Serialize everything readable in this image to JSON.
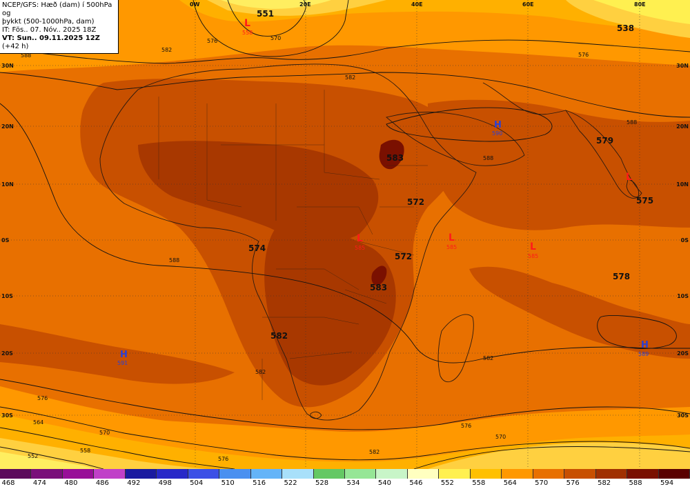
{
  "header": {
    "line1": "NCEP/GFS: Hæð (dam) í 500hPa og",
    "line2": "þykkt (500-1000hPa, dam)",
    "line3": "IT: Fös.. 07. Nóv.. 2025 18Z",
    "line4": "VT: Sun.. 09.11.2025 12Z",
    "line4_suffix": "(+42 h)"
  },
  "map": {
    "lon_labels": [
      "0W",
      "20E",
      "40E",
      "60E",
      "80E"
    ],
    "lat_labels": [
      "30N",
      "20N",
      "10N",
      "0S",
      "10S",
      "20S",
      "30S"
    ],
    "lows": [
      {
        "letter": "L",
        "value": "558"
      },
      {
        "letter": "L",
        "value": "585"
      },
      {
        "letter": "L",
        "value": "585"
      },
      {
        "letter": "L",
        "value": "585"
      },
      {
        "letter": "L",
        "value": ""
      }
    ],
    "highs": [
      {
        "letter": "H",
        "value": "590"
      },
      {
        "letter": "H",
        "value": "591"
      },
      {
        "letter": "H",
        "value": "589"
      }
    ],
    "thickness_labels": [
      "551",
      "538",
      "583",
      "579",
      "572",
      "575",
      "574",
      "572",
      "583",
      "578",
      "582"
    ],
    "contour_labels": [
      "570",
      "576",
      "582",
      "588",
      "576",
      "588",
      "582",
      "588",
      "576",
      "582",
      "582",
      "564",
      "570",
      "558",
      "552",
      "576",
      "582",
      "570",
      "576",
      "588"
    ]
  },
  "colorbar": {
    "levels": [
      "468",
      "474",
      "480",
      "486",
      "492",
      "498",
      "504",
      "510",
      "516",
      "522",
      "528",
      "534",
      "540",
      "546",
      "552",
      "558",
      "564",
      "570",
      "576",
      "582",
      "588",
      "594"
    ],
    "colors": [
      "#5c0a5c",
      "#7a0f7a",
      "#980f98",
      "#c040c8",
      "#1a1aa0",
      "#2828c8",
      "#3c50e6",
      "#4a90f0",
      "#64b4f8",
      "#a8e0fa",
      "#64c864",
      "#96e696",
      "#c8f5c8",
      "#ffffc0",
      "#fff050",
      "#ffc000",
      "#ff9800",
      "#e87000",
      "#c85000",
      "#a03000",
      "#7a1000",
      "#5a0000"
    ]
  }
}
